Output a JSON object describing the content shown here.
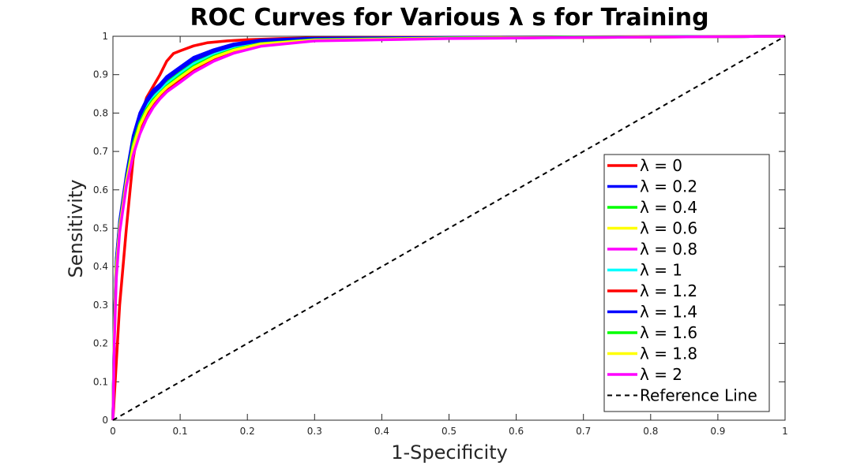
{
  "chart_data": {
    "type": "line",
    "title": "ROC Curves for Various λ s for Training",
    "xlabel": "1-Specificity",
    "ylabel": "Sensitivity",
    "xlim": [
      0,
      1
    ],
    "ylim": [
      0,
      1
    ],
    "x_ticks": [
      "0",
      "0.1",
      "0.2",
      "0.3",
      "0.4",
      "0.5",
      "0.6",
      "0.7",
      "0.8",
      "0.9",
      "1"
    ],
    "y_ticks": [
      "0",
      "0.1",
      "0.2",
      "0.3",
      "0.4",
      "0.5",
      "0.6",
      "0.7",
      "0.8",
      "0.9",
      "1"
    ],
    "grid": false,
    "legend_position": "lower-right",
    "series": [
      {
        "name": "λ = 0",
        "color": "#ff0000",
        "points": [
          [
            0,
            0
          ],
          [
            0.005,
            0.15
          ],
          [
            0.01,
            0.3
          ],
          [
            0.02,
            0.5
          ],
          [
            0.03,
            0.68
          ],
          [
            0.04,
            0.78
          ],
          [
            0.05,
            0.84
          ],
          [
            0.06,
            0.87
          ],
          [
            0.07,
            0.9
          ],
          [
            0.08,
            0.935
          ],
          [
            0.09,
            0.955
          ],
          [
            0.1,
            0.962
          ],
          [
            0.12,
            0.975
          ],
          [
            0.14,
            0.983
          ],
          [
            0.17,
            0.988
          ],
          [
            0.2,
            0.991
          ],
          [
            0.25,
            0.994
          ],
          [
            0.3,
            0.996
          ],
          [
            0.4,
            0.997
          ],
          [
            0.6,
            0.998
          ],
          [
            0.8,
            0.999
          ],
          [
            1,
            1
          ]
        ]
      },
      {
        "name": "λ = 0.2",
        "color": "#0000ff",
        "points": [
          [
            0,
            0
          ],
          [
            0.002,
            0.25
          ],
          [
            0.005,
            0.42
          ],
          [
            0.01,
            0.52
          ],
          [
            0.02,
            0.64
          ],
          [
            0.03,
            0.74
          ],
          [
            0.04,
            0.8
          ],
          [
            0.05,
            0.835
          ],
          [
            0.06,
            0.86
          ],
          [
            0.07,
            0.875
          ],
          [
            0.08,
            0.895
          ],
          [
            0.1,
            0.92
          ],
          [
            0.12,
            0.945
          ],
          [
            0.15,
            0.965
          ],
          [
            0.18,
            0.98
          ],
          [
            0.22,
            0.99
          ],
          [
            0.3,
            0.995
          ],
          [
            0.5,
            0.997
          ],
          [
            0.7,
            0.998
          ],
          [
            0.9,
            0.999
          ],
          [
            1,
            1
          ]
        ]
      },
      {
        "name": "λ = 0.4",
        "color": "#00ff00",
        "points": [
          [
            0,
            0
          ],
          [
            0.002,
            0.24
          ],
          [
            0.005,
            0.41
          ],
          [
            0.01,
            0.51
          ],
          [
            0.02,
            0.63
          ],
          [
            0.03,
            0.73
          ],
          [
            0.04,
            0.785
          ],
          [
            0.05,
            0.82
          ],
          [
            0.06,
            0.845
          ],
          [
            0.07,
            0.862
          ],
          [
            0.08,
            0.88
          ],
          [
            0.1,
            0.908
          ],
          [
            0.12,
            0.932
          ],
          [
            0.15,
            0.955
          ],
          [
            0.18,
            0.972
          ],
          [
            0.22,
            0.985
          ],
          [
            0.3,
            0.993
          ],
          [
            0.5,
            0.996
          ],
          [
            0.7,
            0.998
          ],
          [
            0.9,
            0.999
          ],
          [
            1,
            1
          ]
        ]
      },
      {
        "name": "λ = 0.6",
        "color": "#ffff00",
        "points": [
          [
            0,
            0
          ],
          [
            0.002,
            0.23
          ],
          [
            0.005,
            0.4
          ],
          [
            0.01,
            0.505
          ],
          [
            0.02,
            0.625
          ],
          [
            0.03,
            0.725
          ],
          [
            0.04,
            0.78
          ],
          [
            0.05,
            0.812
          ],
          [
            0.06,
            0.838
          ],
          [
            0.07,
            0.855
          ],
          [
            0.08,
            0.873
          ],
          [
            0.1,
            0.9
          ],
          [
            0.12,
            0.925
          ],
          [
            0.15,
            0.95
          ],
          [
            0.18,
            0.968
          ],
          [
            0.22,
            0.982
          ],
          [
            0.3,
            0.992
          ],
          [
            0.5,
            0.996
          ],
          [
            0.7,
            0.998
          ],
          [
            0.9,
            0.999
          ],
          [
            1,
            1
          ]
        ]
      },
      {
        "name": "λ = 0.8",
        "color": "#ff00ff",
        "points": [
          [
            0,
            0
          ],
          [
            0.002,
            0.22
          ],
          [
            0.005,
            0.39
          ],
          [
            0.01,
            0.5
          ],
          [
            0.02,
            0.62
          ],
          [
            0.03,
            0.7
          ],
          [
            0.04,
            0.76
          ],
          [
            0.05,
            0.8
          ],
          [
            0.06,
            0.828
          ],
          [
            0.07,
            0.848
          ],
          [
            0.08,
            0.865
          ],
          [
            0.1,
            0.89
          ],
          [
            0.12,
            0.915
          ],
          [
            0.15,
            0.942
          ],
          [
            0.18,
            0.962
          ],
          [
            0.22,
            0.978
          ],
          [
            0.3,
            0.99
          ],
          [
            0.5,
            0.995
          ],
          [
            0.7,
            0.997
          ],
          [
            0.9,
            0.999
          ],
          [
            1,
            1
          ]
        ]
      },
      {
        "name": "λ = 1",
        "color": "#00ffff",
        "points": [
          [
            0,
            0
          ],
          [
            0.002,
            0.235
          ],
          [
            0.005,
            0.405
          ],
          [
            0.01,
            0.507
          ],
          [
            0.02,
            0.627
          ],
          [
            0.03,
            0.728
          ],
          [
            0.04,
            0.783
          ],
          [
            0.05,
            0.815
          ],
          [
            0.06,
            0.84
          ],
          [
            0.07,
            0.858
          ],
          [
            0.08,
            0.876
          ],
          [
            0.1,
            0.903
          ],
          [
            0.12,
            0.928
          ],
          [
            0.15,
            0.952
          ],
          [
            0.18,
            0.97
          ],
          [
            0.22,
            0.984
          ],
          [
            0.3,
            0.993
          ],
          [
            0.5,
            0.996
          ],
          [
            0.7,
            0.998
          ],
          [
            0.9,
            0.999
          ],
          [
            1,
            1
          ]
        ]
      },
      {
        "name": "λ = 1.2",
        "color": "#ff0000",
        "points": [
          [
            0,
            0
          ],
          [
            0.002,
            0.22
          ],
          [
            0.005,
            0.39
          ],
          [
            0.01,
            0.5
          ],
          [
            0.02,
            0.62
          ],
          [
            0.03,
            0.7
          ],
          [
            0.04,
            0.755
          ],
          [
            0.05,
            0.795
          ],
          [
            0.06,
            0.823
          ],
          [
            0.07,
            0.843
          ],
          [
            0.08,
            0.86
          ],
          [
            0.1,
            0.886
          ],
          [
            0.12,
            0.912
          ],
          [
            0.15,
            0.94
          ],
          [
            0.18,
            0.96
          ],
          [
            0.22,
            0.977
          ],
          [
            0.3,
            0.989
          ],
          [
            0.5,
            0.995
          ],
          [
            0.7,
            0.997
          ],
          [
            0.9,
            0.999
          ],
          [
            1,
            1
          ]
        ]
      },
      {
        "name": "λ = 1.4",
        "color": "#0000ff",
        "points": [
          [
            0,
            0
          ],
          [
            0.002,
            0.245
          ],
          [
            0.005,
            0.415
          ],
          [
            0.01,
            0.515
          ],
          [
            0.02,
            0.635
          ],
          [
            0.03,
            0.735
          ],
          [
            0.04,
            0.792
          ],
          [
            0.05,
            0.828
          ],
          [
            0.06,
            0.852
          ],
          [
            0.07,
            0.868
          ],
          [
            0.08,
            0.888
          ],
          [
            0.1,
            0.914
          ],
          [
            0.12,
            0.938
          ],
          [
            0.15,
            0.96
          ],
          [
            0.18,
            0.976
          ],
          [
            0.22,
            0.988
          ],
          [
            0.3,
            0.994
          ],
          [
            0.5,
            0.997
          ],
          [
            0.7,
            0.998
          ],
          [
            0.9,
            0.999
          ],
          [
            1,
            1
          ]
        ]
      },
      {
        "name": "λ = 1.6",
        "color": "#00ff00",
        "points": [
          [
            0,
            0
          ],
          [
            0.002,
            0.23
          ],
          [
            0.005,
            0.4
          ],
          [
            0.01,
            0.505
          ],
          [
            0.02,
            0.625
          ],
          [
            0.03,
            0.72
          ],
          [
            0.04,
            0.775
          ],
          [
            0.05,
            0.81
          ],
          [
            0.06,
            0.835
          ],
          [
            0.07,
            0.852
          ],
          [
            0.08,
            0.87
          ],
          [
            0.1,
            0.897
          ],
          [
            0.12,
            0.922
          ],
          [
            0.15,
            0.948
          ],
          [
            0.18,
            0.966
          ],
          [
            0.22,
            0.981
          ],
          [
            0.3,
            0.991
          ],
          [
            0.5,
            0.996
          ],
          [
            0.7,
            0.998
          ],
          [
            0.9,
            0.999
          ],
          [
            1,
            1
          ]
        ]
      },
      {
        "name": "λ = 1.8",
        "color": "#ffff00",
        "points": [
          [
            0,
            0
          ],
          [
            0.002,
            0.225
          ],
          [
            0.005,
            0.395
          ],
          [
            0.01,
            0.502
          ],
          [
            0.02,
            0.622
          ],
          [
            0.03,
            0.71
          ],
          [
            0.04,
            0.768
          ],
          [
            0.05,
            0.805
          ],
          [
            0.06,
            0.83
          ],
          [
            0.07,
            0.85
          ],
          [
            0.08,
            0.867
          ],
          [
            0.1,
            0.893
          ],
          [
            0.12,
            0.918
          ],
          [
            0.15,
            0.945
          ],
          [
            0.18,
            0.964
          ],
          [
            0.22,
            0.98
          ],
          [
            0.3,
            0.99
          ],
          [
            0.5,
            0.995
          ],
          [
            0.7,
            0.997
          ],
          [
            0.9,
            0.999
          ],
          [
            1,
            1
          ]
        ]
      },
      {
        "name": "λ = 2",
        "color": "#ff00ff",
        "points": [
          [
            0,
            0
          ],
          [
            0.002,
            0.2
          ],
          [
            0.005,
            0.37
          ],
          [
            0.01,
            0.49
          ],
          [
            0.02,
            0.61
          ],
          [
            0.03,
            0.69
          ],
          [
            0.04,
            0.745
          ],
          [
            0.05,
            0.785
          ],
          [
            0.06,
            0.815
          ],
          [
            0.07,
            0.837
          ],
          [
            0.08,
            0.855
          ],
          [
            0.1,
            0.88
          ],
          [
            0.12,
            0.906
          ],
          [
            0.15,
            0.935
          ],
          [
            0.18,
            0.956
          ],
          [
            0.22,
            0.974
          ],
          [
            0.3,
            0.988
          ],
          [
            0.5,
            0.994
          ],
          [
            0.7,
            0.997
          ],
          [
            0.9,
            0.999
          ],
          [
            1,
            1
          ]
        ]
      },
      {
        "name": "Reference Line",
        "color": "#000000",
        "dashed": true,
        "points": [
          [
            0,
            0
          ],
          [
            1,
            1
          ]
        ]
      }
    ]
  }
}
